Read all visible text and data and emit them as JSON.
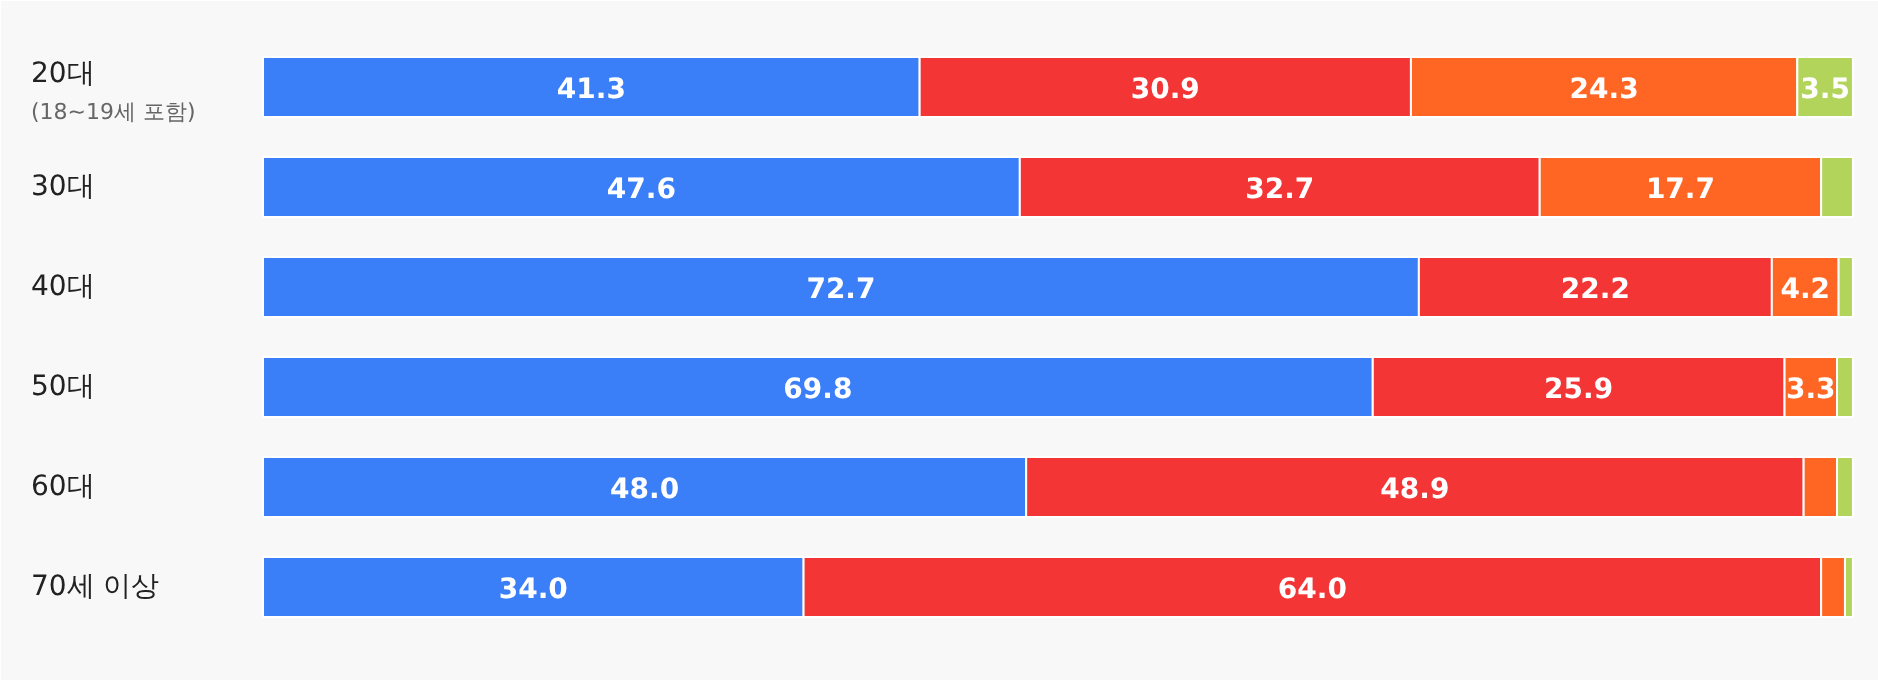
{
  "chart_data": {
    "type": "bar",
    "orientation": "horizontal",
    "stacked": true,
    "grid": false,
    "categories": [
      "20대\n(18~19세 포함)",
      "30대",
      "40대",
      "50대",
      "60대",
      "70세 이상"
    ],
    "series": [
      {
        "color": "#3a7ff7",
        "values": [
          41.3,
          47.6,
          72.7,
          69.8,
          48.0,
          34.0
        ],
        "value_labels": [
          "41.3",
          "47.6",
          "72.7",
          "69.8",
          "48.0",
          "34.0"
        ]
      },
      {
        "color": "#f33535",
        "values": [
          30.9,
          32.7,
          22.2,
          25.9,
          48.9,
          64.0
        ],
        "value_labels": [
          "30.9",
          "32.7",
          "22.2",
          "25.9",
          "48.9",
          "64.0"
        ]
      },
      {
        "color": "#ff6623",
        "values": [
          24.3,
          17.7,
          4.2,
          3.3,
          2.1,
          1.5
        ],
        "value_labels": [
          "24.3",
          "17.7",
          "4.2",
          "3.3",
          null,
          null
        ]
      },
      {
        "color": "#b3d45a",
        "values": [
          3.5,
          2.0,
          0.9,
          1.0,
          1.0,
          0.5
        ],
        "value_labels": [
          "3.5",
          null,
          null,
          null,
          null,
          null
        ]
      }
    ]
  }
}
